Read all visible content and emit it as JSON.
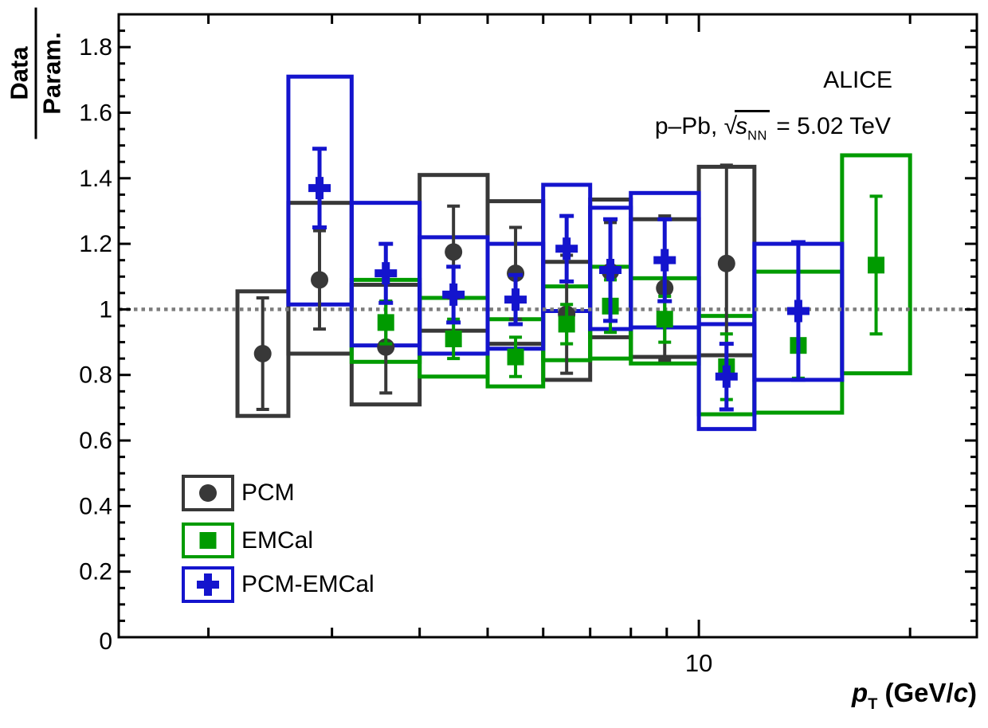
{
  "annotations": {
    "experiment": "ALICE",
    "system_prefix": "p–Pb, ",
    "sqrt_symbol": "√",
    "sqrt_s": "s",
    "sqrt_sub": "NN",
    "system_suffix": " = 5.02 TeV"
  },
  "y_axis_title": {
    "numerator": "Data",
    "denominator": "Param."
  },
  "x_axis_title": {
    "p": "p",
    "sub": "T",
    "units_open": " (GeV/",
    "c": "c",
    "units_close": ")"
  },
  "legend": {
    "entries": [
      {
        "label": "PCM",
        "marker": "circle",
        "color": "#383838"
      },
      {
        "label": "EMCal",
        "marker": "square",
        "color": "#009b00"
      },
      {
        "label": "PCM-EMCal",
        "marker": "cross",
        "color": "#1414cd"
      }
    ]
  },
  "colors": {
    "pcm": "#383838",
    "emcal": "#009b00",
    "pcm_emcal": "#1414cd",
    "reference_line": "#7d7d7d",
    "frame": "#000000",
    "background": "#ffffff"
  },
  "chart_data": {
    "type": "scatter",
    "title": "ALICE p–Pb √s_NN = 5.02 TeV : Data/Param. ratio vs p_T",
    "xlabel": "p_T (GeV/c)",
    "ylabel": "Data/Param.",
    "x_scale": "log",
    "xlim": [
      1.49,
      24.9
    ],
    "ylim": [
      0,
      1.9
    ],
    "grid": false,
    "legend_position": "bottom-left",
    "reference_line_y": 1.0,
    "x_ticks_medium": [
      2,
      3,
      4,
      5,
      6,
      7,
      8,
      9,
      20
    ],
    "x_ticks_major": [
      10
    ],
    "x_tick_labels": [
      "10"
    ],
    "y_tick_major_step": 0.2,
    "y_tick_minor_step": 0.05,
    "y_tick_labels": [
      "0",
      "0.2",
      "0.4",
      "0.6",
      "0.8",
      "1",
      "1.2",
      "1.4",
      "1.6",
      "1.8"
    ],
    "series": [
      {
        "name": "PCM",
        "marker": "circle",
        "color": "#383838",
        "points": [
          {
            "pt": 2.39,
            "pt_low": 2.2,
            "pt_high": 2.6,
            "y": 0.865,
            "stat": 0.17,
            "sys_low": 0.675,
            "sys_high": 1.055
          },
          {
            "pt": 2.88,
            "pt_low": 2.6,
            "pt_high": 3.2,
            "y": 1.09,
            "stat": 0.15,
            "sys_low": 0.865,
            "sys_high": 1.325
          },
          {
            "pt": 3.58,
            "pt_low": 3.2,
            "pt_high": 4.0,
            "y": 0.885,
            "stat": 0.14,
            "sys_low": 0.71,
            "sys_high": 1.075
          },
          {
            "pt": 4.47,
            "pt_low": 4.0,
            "pt_high": 5.0,
            "y": 1.175,
            "stat": 0.14,
            "sys_low": 0.935,
            "sys_high": 1.41
          },
          {
            "pt": 5.48,
            "pt_low": 5.0,
            "pt_high": 6.0,
            "y": 1.11,
            "stat": 0.14,
            "sys_low": 0.895,
            "sys_high": 1.33
          },
          {
            "pt": 6.48,
            "pt_low": 6.0,
            "pt_high": 7.0,
            "y": 0.985,
            "stat": 0.18,
            "sys_low": 0.785,
            "sys_high": 1.145
          },
          {
            "pt": 7.48,
            "pt_low": 7.0,
            "pt_high": 8.0,
            "y": 1.115,
            "stat": 0.15,
            "sys_low": 0.915,
            "sys_high": 1.335
          },
          {
            "pt": 8.94,
            "pt_low": 8.0,
            "pt_high": 10.0,
            "y": 1.065,
            "stat": 0.22,
            "sys_low": 0.855,
            "sys_high": 1.275
          },
          {
            "pt": 10.95,
            "pt_low": 10.0,
            "pt_high": 12.0,
            "y": 1.14,
            "stat": 0.3,
            "sys_low": 0.86,
            "sys_high": 1.435
          }
        ]
      },
      {
        "name": "EMCal",
        "marker": "square",
        "color": "#009b00",
        "points": [
          {
            "pt": 3.58,
            "pt_low": 3.2,
            "pt_high": 4.0,
            "y": 0.96,
            "stat": 0.065,
            "sys_low": 0.84,
            "sys_high": 1.09
          },
          {
            "pt": 4.47,
            "pt_low": 4.0,
            "pt_high": 5.0,
            "y": 0.91,
            "stat": 0.06,
            "sys_low": 0.795,
            "sys_high": 1.035
          },
          {
            "pt": 5.48,
            "pt_low": 5.0,
            "pt_high": 6.0,
            "y": 0.855,
            "stat": 0.06,
            "sys_low": 0.765,
            "sys_high": 0.97
          },
          {
            "pt": 6.48,
            "pt_low": 6.0,
            "pt_high": 7.0,
            "y": 0.955,
            "stat": 0.06,
            "sys_low": 0.845,
            "sys_high": 1.07
          },
          {
            "pt": 7.48,
            "pt_low": 7.0,
            "pt_high": 8.0,
            "y": 1.01,
            "stat": 0.08,
            "sys_low": 0.85,
            "sys_high": 1.13
          },
          {
            "pt": 8.94,
            "pt_low": 8.0,
            "pt_high": 10.0,
            "y": 0.97,
            "stat": 0.07,
            "sys_low": 0.835,
            "sys_high": 1.095
          },
          {
            "pt": 10.95,
            "pt_low": 10.0,
            "pt_high": 12.0,
            "y": 0.825,
            "stat": 0.1,
            "sys_low": 0.68,
            "sys_high": 0.98
          },
          {
            "pt": 13.86,
            "pt_low": 12.0,
            "pt_high": 16.0,
            "y": 0.89,
            "stat": 0.1,
            "sys_low": 0.685,
            "sys_high": 1.115
          },
          {
            "pt": 17.89,
            "pt_low": 16.0,
            "pt_high": 20.0,
            "y": 1.135,
            "stat": 0.21,
            "sys_low": 0.805,
            "sys_high": 1.47
          }
        ]
      },
      {
        "name": "PCM-EMCal",
        "marker": "cross",
        "color": "#1414cd",
        "points": [
          {
            "pt": 2.88,
            "pt_low": 2.6,
            "pt_high": 3.2,
            "y": 1.37,
            "stat": 0.12,
            "sys_low": 1.015,
            "sys_high": 1.71
          },
          {
            "pt": 3.58,
            "pt_low": 3.2,
            "pt_high": 4.0,
            "y": 1.11,
            "stat": 0.09,
            "sys_low": 0.89,
            "sys_high": 1.325
          },
          {
            "pt": 4.47,
            "pt_low": 4.0,
            "pt_high": 5.0,
            "y": 1.045,
            "stat": 0.085,
            "sys_low": 0.865,
            "sys_high": 1.22
          },
          {
            "pt": 5.48,
            "pt_low": 5.0,
            "pt_high": 6.0,
            "y": 1.03,
            "stat": 0.075,
            "sys_low": 0.88,
            "sys_high": 1.2
          },
          {
            "pt": 6.48,
            "pt_low": 6.0,
            "pt_high": 7.0,
            "y": 1.185,
            "stat": 0.1,
            "sys_low": 0.995,
            "sys_high": 1.38
          },
          {
            "pt": 7.48,
            "pt_low": 7.0,
            "pt_high": 8.0,
            "y": 1.12,
            "stat": 0.155,
            "sys_low": 0.94,
            "sys_high": 1.31
          },
          {
            "pt": 8.94,
            "pt_low": 8.0,
            "pt_high": 10.0,
            "y": 1.15,
            "stat": 0.125,
            "sys_low": 0.945,
            "sys_high": 1.355
          },
          {
            "pt": 10.95,
            "pt_low": 10.0,
            "pt_high": 12.0,
            "y": 0.795,
            "stat": 0.1,
            "sys_low": 0.635,
            "sys_high": 0.955
          },
          {
            "pt": 13.86,
            "pt_low": 12.0,
            "pt_high": 16.0,
            "y": 0.995,
            "stat": 0.21,
            "sys_low": 0.785,
            "sys_high": 1.2
          }
        ]
      }
    ]
  }
}
